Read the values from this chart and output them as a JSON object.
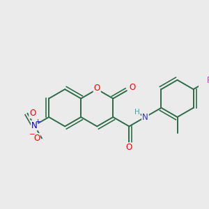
{
  "bg_color": "#ebebeb",
  "bond_color": "#2d6b4a",
  "bond_width": 1.4,
  "atom_colors": {
    "O": "#ff0000",
    "N_nitro": "#0000cc",
    "N_amide": "#3333bb",
    "F": "#cc33cc",
    "H": "#33aaaa",
    "C": "#2d6b4a"
  },
  "font_size": 8.5,
  "fig_size": [
    3.0,
    3.0
  ],
  "dpi": 100
}
